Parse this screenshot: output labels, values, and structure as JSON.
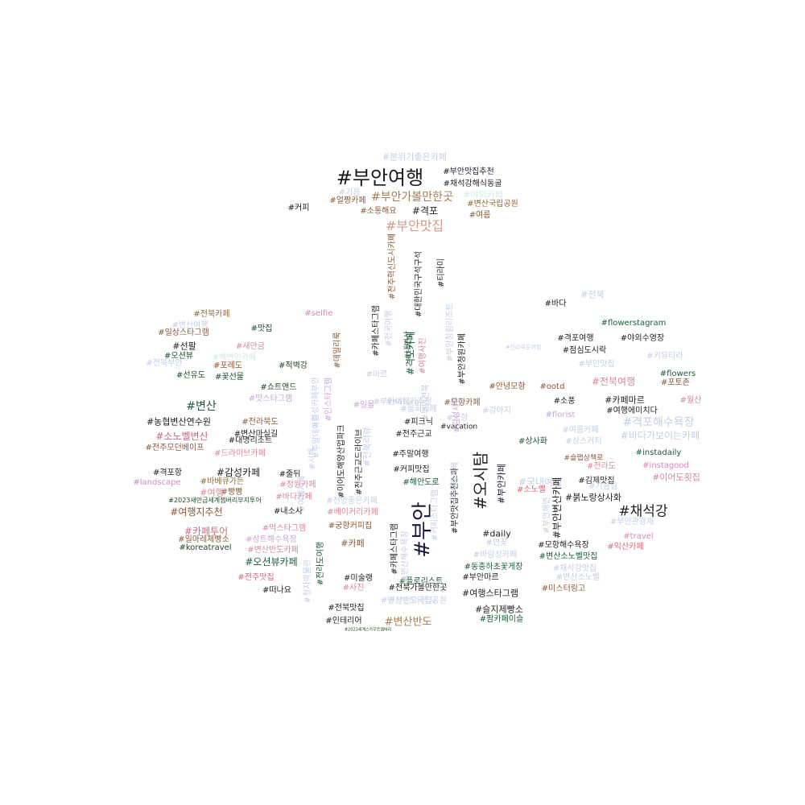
{
  "word_cloud": {
    "words": [
      {
        "text": "#분위기좋은카페",
        "color": "#c6cde8"
      },
      {
        "text": "#부안여행",
        "color": "#1a1a1a"
      },
      {
        "text": "#부안맛집추천",
        "color": "#1d1d3a"
      },
      {
        "text": "#채석강해식동굴",
        "color": "#222222"
      },
      {
        "text": "#기름",
        "color": "#c9cde6"
      },
      {
        "text": "#부안가볼만한곳",
        "color": "#a67c52"
      },
      {
        "text": "#야외카페",
        "color": "#d6e8e6"
      },
      {
        "text": "#얼짱카페",
        "color": "#8a5a3a"
      },
      {
        "text": "#변산국립공원",
        "color": "#8a6a3a"
      },
      {
        "text": "#커피",
        "color": "#222222"
      },
      {
        "text": "#소통해요",
        "color": "#8a5a3a"
      },
      {
        "text": "#격포",
        "color": "#222222"
      },
      {
        "text": "#여름",
        "color": "#8a5a3a"
      },
      {
        "text": "#부안맛집",
        "color": "#d49a8a"
      },
      {
        "text": "#전북카페",
        "color": "#8a6a3a"
      },
      {
        "text": "#selfie",
        "color": "#d48ac0"
      },
      {
        "text": "#변산여행",
        "color": "#c6cde8"
      },
      {
        "text": "#일상스타그램",
        "color": "#8a5a3a"
      },
      {
        "text": "#맛집",
        "color": "#1d4a2a"
      },
      {
        "text": "#선팔",
        "color": "#222222"
      },
      {
        "text": "#새만금",
        "color": "#d48a9a"
      },
      {
        "text": "#오션뷰",
        "color": "#1d4a2a"
      },
      {
        "text": "#해변인카페",
        "color": "#d6e8e6"
      },
      {
        "text": "#포레도",
        "color": "#8a5a3a"
      },
      {
        "text": "#적벽강",
        "color": "#1d4a2a"
      },
      {
        "text": "#선유도",
        "color": "#1d4a2a"
      },
      {
        "text": "#꽃선물",
        "color": "#1d4a2a"
      },
      {
        "text": "#쇼트앤드",
        "color": "#1d4a2a"
      },
      {
        "text": "#맛스타그램",
        "color": "#c6a8d8"
      },
      {
        "text": "#변산",
        "color": "#1d5a3a"
      },
      {
        "text": "#농협변산연수원",
        "color": "#1a1a1a"
      },
      {
        "text": "#전라북도",
        "color": "#8a5a3a"
      },
      {
        "text": "#소노벨변산",
        "color": "#c06a8a"
      },
      {
        "text": "#변산마실길",
        "color": "#222222"
      },
      {
        "text": "#대명리조트",
        "color": "#222222"
      },
      {
        "text": "#전주모던베이프",
        "color": "#8a5a3a"
      },
      {
        "text": "#드라이브카페",
        "color": "#d48a9a"
      },
      {
        "text": "#격포항",
        "color": "#222222"
      },
      {
        "text": "#감성카페",
        "color": "#222222"
      },
      {
        "text": "#landscape",
        "color": "#d48ac0"
      },
      {
        "text": "#바베큐가든",
        "color": "#8a6a3a"
      },
      {
        "text": "#줄뒤",
        "color": "#222222"
      },
      {
        "text": "#정원카페",
        "color": "#d48a9a"
      },
      {
        "text": "#여행",
        "color": "#d48a9a"
      },
      {
        "text": "#빵빵",
        "color": "#8a5a3a"
      },
      {
        "text": "#바다카페",
        "color": "#d48a9a"
      },
      {
        "text": "#2023새만금세계잼버리부지투어",
        "color": "#1d4a2a"
      },
      {
        "text": "#여행지추천",
        "color": "#8a5a3a"
      },
      {
        "text": "#내소사",
        "color": "#222222"
      },
      {
        "text": "#카페투어",
        "color": "#d46a7a"
      },
      {
        "text": "#먹스타그램",
        "color": "#d48a9a"
      },
      {
        "text": "#일마레제빵소",
        "color": "#8a5a3a"
      },
      {
        "text": "#상트해수욕장",
        "color": "#c6a8d8"
      },
      {
        "text": "#koreatravel",
        "color": "#1d4a2a"
      },
      {
        "text": "#변산반도카페",
        "color": "#d48a9a"
      },
      {
        "text": "#오션뷰카페",
        "color": "#1d5a3a"
      },
      {
        "text": "#전주맛집",
        "color": "#d46a7a"
      },
      {
        "text": "#떠나요",
        "color": "#222222"
      },
      {
        "text": "#마르",
        "color": "#c6cde8"
      },
      {
        "text": "#일몰",
        "color": "#c6a8d8"
      },
      {
        "text": "#물회카페",
        "color": "#c6cde8"
      },
      {
        "text": "#피크닉",
        "color": "#222222"
      },
      {
        "text": "#모항카페",
        "color": "#8a5a3a"
      },
      {
        "text": "#궁항",
        "color": "#c6cde8"
      },
      {
        "text": "#vacation",
        "color": "#222222"
      },
      {
        "text": "#전주근교",
        "color": "#222222"
      },
      {
        "text": "#강아지",
        "color": "#c6cde8"
      },
      {
        "text": "#전망좋은카페",
        "color": "#c6cde8"
      },
      {
        "text": "#베이커리카페",
        "color": "#d48a9a"
      },
      {
        "text": "#궁항커피집",
        "color": "#8a5a3a"
      },
      {
        "text": "#커피맛집",
        "color": "#222222"
      },
      {
        "text": "#주말여행",
        "color": "#222222"
      },
      {
        "text": "#해안도로",
        "color": "#1d5a3a"
      },
      {
        "text": "#카페",
        "color": "#8a5a3a"
      },
      {
        "text": "#부안",
        "color": "#1a1a3a"
      },
      {
        "text": "#미술랭",
        "color": "#222222"
      },
      {
        "text": "#플로리스트",
        "color": "#1d5a3a"
      },
      {
        "text": "#사진",
        "color": "#d48a9a"
      },
      {
        "text": "#전북가볼만한곳",
        "color": "#222222"
      },
      {
        "text": "#전북맛집",
        "color": "#222222"
      },
      {
        "text": "#부안여행지",
        "color": "#d6e8e6"
      },
      {
        "text": "#인테리어",
        "color": "#222222"
      },
      {
        "text": "#변산반도",
        "color": "#a67c52"
      },
      {
        "text": "#2023세계스카우트잼버리",
        "color": "#1d4a2a"
      },
      {
        "text": "#바다",
        "color": "#222222"
      },
      {
        "text": "#전북",
        "color": "#c6cde8"
      },
      {
        "text": "#flowerstagram",
        "color": "#1d5a3a"
      },
      {
        "text": "#격포여행",
        "color": "#222222"
      },
      {
        "text": "#야외수영장",
        "color": "#222222"
      },
      {
        "text": "#점심도시락",
        "color": "#222222"
      },
      {
        "text": "#키뮤티라",
        "color": "#c6cde8"
      },
      {
        "text": "#부안맛집",
        "color": "#c6cde8"
      },
      {
        "text": "#flowers",
        "color": "#1d5a3a"
      },
      {
        "text": "#전북여행",
        "color": "#d48a9a"
      },
      {
        "text": "#포토존",
        "color": "#8a5a3a"
      },
      {
        "text": "#안녕모항",
        "color": "#8a5a3a"
      },
      {
        "text": "#ootd",
        "color": "#8a5a3a"
      },
      {
        "text": "#소풍",
        "color": "#222222"
      },
      {
        "text": "#카페마르",
        "color": "#222222"
      },
      {
        "text": "#월산",
        "color": "#d48a9a"
      },
      {
        "text": "#florist",
        "color": "#c6a8d8"
      },
      {
        "text": "#여행에미치다",
        "color": "#222222"
      },
      {
        "text": "#격포해수욕장",
        "color": "#c6cde8"
      },
      {
        "text": "#바다가보이는카페",
        "color": "#c6cde8"
      },
      {
        "text": "#여름카페",
        "color": "#c6cde8"
      },
      {
        "text": "#상사화",
        "color": "#1d5a3a"
      },
      {
        "text": "#상스커피",
        "color": "#c6cde8"
      },
      {
        "text": "#instadaily",
        "color": "#1d5a3a"
      },
      {
        "text": "#슬랩상책로",
        "color": "#8a5a3a"
      },
      {
        "text": "#전라도",
        "color": "#d48a9a"
      },
      {
        "text": "#instagood",
        "color": "#d48ac0"
      },
      {
        "text": "#국내여행",
        "color": "#c6cde8"
      },
      {
        "text": "#김제맛집",
        "color": "#222222"
      },
      {
        "text": "#이어도횟집",
        "color": "#d48a9a"
      },
      {
        "text": "#소노벨",
        "color": "#d46a7a"
      },
      {
        "text": "#기념일",
        "color": "#c6cde8"
      },
      {
        "text": "#붉노랑상사화",
        "color": "#222222"
      },
      {
        "text": "#채석강",
        "color": "#222222"
      },
      {
        "text": "#daily",
        "color": "#222222"
      },
      {
        "text": "#부안관광제",
        "color": "#c6cde8"
      },
      {
        "text": "#travel",
        "color": "#d48ac0"
      },
      {
        "text": "#연꽃",
        "color": "#c6cde8"
      },
      {
        "text": "#모항해수욕장",
        "color": "#222222"
      },
      {
        "text": "#익산카페",
        "color": "#d46a7a"
      },
      {
        "text": "#바람성카페",
        "color": "#c6cde8"
      },
      {
        "text": "#변산소노벨맛집",
        "color": "#1d5a3a"
      },
      {
        "text": "#동충하초꽃게장",
        "color": "#1d5a3a"
      },
      {
        "text": "#채석강맛집",
        "color": "#c6cde8"
      },
      {
        "text": "#부안마르",
        "color": "#222222"
      },
      {
        "text": "#변산소노벨",
        "color": "#c6cde8"
      },
      {
        "text": "#여행스타그램",
        "color": "#222222"
      },
      {
        "text": "#미스터링고",
        "color": "#8a5a3a"
      },
      {
        "text": "#슬지제빵소",
        "color": "#222222"
      },
      {
        "text": "#팜카페이슬",
        "color": "#1d5a3a"
      },
      {
        "text": "#변산반도국립공원",
        "color": "#c6cde8"
      },
      {
        "text": "#전주혁신도시카페",
        "color": "#8a5a3a"
      },
      {
        "text": "#대한민국구석구석",
        "color": "#222222"
      },
      {
        "text": "#티라미",
        "color": "#222222"
      },
      {
        "text": "#카페스타그램",
        "color": "#222222"
      },
      {
        "text": "#전국여행",
        "color": "#c6cde8"
      },
      {
        "text": "#내변산",
        "color": "#1d5a3a"
      },
      {
        "text": "#데일리룩",
        "color": "#8a5a3a"
      },
      {
        "text": "#격포카페",
        "color": "#1d5a3a"
      },
      {
        "text": "#여행사진",
        "color": "#d48a9a"
      },
      {
        "text": "#부안청림리조트",
        "color": "#c6cde8"
      },
      {
        "text": "#부안청원카페",
        "color": "#222222"
      },
      {
        "text": "#감성사진",
        "color": "#c6a8d8"
      },
      {
        "text": "#전북리뷰",
        "color": "#c6cde8"
      },
      {
        "text": "#전주근교드라이브",
        "color": "#222222"
      },
      {
        "text": "#이어도해양산업파크",
        "color": "#222222"
      },
      {
        "text": "#오시탐",
        "color": "#222222"
      },
      {
        "text": "#부안카페",
        "color": "#1a1a3a"
      },
      {
        "text": "#부안변산카페",
        "color": "#222222"
      },
      {
        "text": "#부안맛집추천스파",
        "color": "#222222"
      },
      {
        "text": "#감성카페부안",
        "color": "#c6cde8"
      },
      {
        "text": "#인스타그램",
        "color": "#c6a8d8"
      },
      {
        "text": "#주말데이트",
        "color": "#c6cde8"
      },
      {
        "text": "#서해",
        "color": "#c6cde8"
      },
      {
        "text": "#여행기록",
        "color": "#c6cde8"
      },
      {
        "text": "#전라도여행",
        "color": "#1d5a3a"
      },
      {
        "text": "#청자박물관",
        "color": "#c6cde8"
      },
      {
        "text": "#카페스타그램",
        "color": "#222222"
      },
      {
        "text": "#변산해수욕장",
        "color": "#c6cde8"
      },
      {
        "text": "#커피스타그램",
        "color": "#c6cde8"
      },
      {
        "text": "#부안해변",
        "color": "#c6cde8"
      },
      {
        "text": "#채석강카페",
        "color": "#c6cde8"
      },
      {
        "text": "#전라북도여행",
        "color": "#c6cde8"
      },
      {
        "text": "#부안전북",
        "color": "#c6cde8"
      },
      {
        "text": "#전북부안",
        "color": "#c6cde8"
      },
      {
        "text": "#부안여행지추천",
        "color": "#c6cde8"
      },
      {
        "text": "#natura",
        "color": "#c6cde8"
      }
    ]
  }
}
